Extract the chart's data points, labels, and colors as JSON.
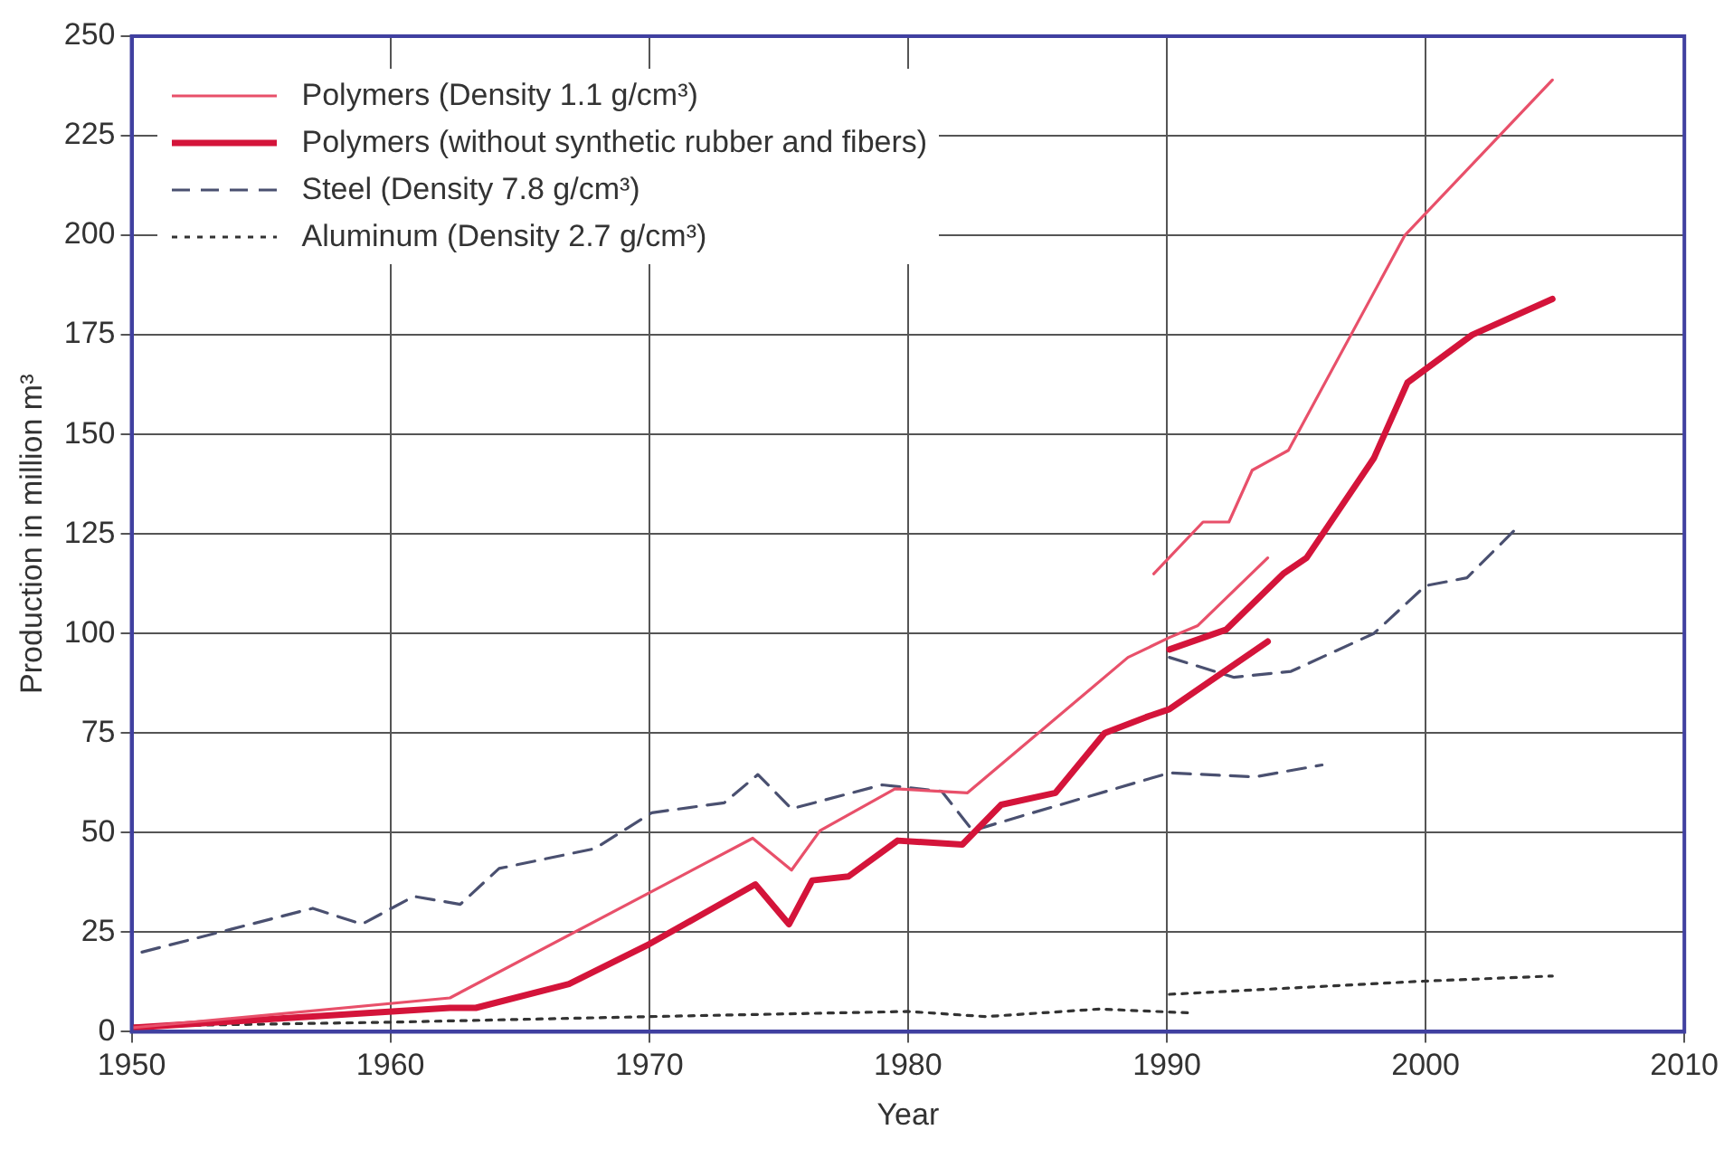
{
  "chart_data": {
    "type": "line",
    "xlabel": "Year",
    "ylabel": "Production in million m³",
    "xlim": [
      1950,
      2010
    ],
    "xticks": [
      1950,
      1960,
      1970,
      1980,
      1990,
      2000,
      2010
    ],
    "ylim": [
      0,
      250
    ],
    "yticks": [
      0,
      25,
      50,
      75,
      100,
      125,
      150,
      175,
      200,
      225,
      250
    ],
    "grid": true,
    "legend": "top left",
    "marker": "none",
    "series": [
      {
        "name": "Polymers (Density 1.1 g/cm³)",
        "color": "#e8506a",
        "line_style": "solid",
        "x": [
          1950,
          1962.3,
          1974,
          1975.5,
          1976.6,
          1979.5,
          1982.3,
          1988.5,
          1990.1,
          1991.2,
          1993.9
        ],
        "values": [
          1,
          8.5,
          48.6,
          40.6,
          50.5,
          61,
          60,
          94,
          99,
          102,
          119
        ]
      },
      {
        "name": "Polymers (without synthetic rubber and fibers)",
        "color": "#d4143a",
        "line_style": "solid",
        "x": [
          1950,
          1962.3,
          1963.3,
          1966.9,
          1970,
          1974.1,
          1975.4,
          1976.3,
          1977.7,
          1979.6,
          1982.1,
          1983.6,
          1985.7,
          1987.6,
          1989.2,
          1990.1,
          1993.9
        ],
        "values": [
          1,
          6,
          6,
          12,
          22,
          37,
          27,
          38,
          39,
          48,
          47,
          57,
          60,
          75,
          79,
          81,
          98
        ]
      },
      {
        "name": "Steel (Density 7.8 g/cm³)",
        "color": "#4a5070",
        "line_style": "dashed",
        "x": [
          1950.4,
          1957,
          1958.9,
          1960.9,
          1962.7,
          1964.2,
          1967.9,
          1970.1,
          1972.9,
          1974.2,
          1975.5,
          1979,
          1981.3,
          1982.5,
          1984.3,
          1990.1,
          1993.4,
          1996
        ],
        "values": [
          20,
          31,
          27,
          34,
          32,
          41,
          46,
          55,
          57.5,
          64.6,
          56,
          62,
          60.4,
          50.5,
          54,
          65,
          64,
          67
        ]
      },
      {
        "name": "Aluminum (Density 2.7 g/cm³)",
        "color": "#333333",
        "line_style": "dotted",
        "x": [
          1950,
          1960,
          1970,
          1980,
          1983,
          1987.4,
          1991
        ],
        "values": [
          1.4,
          2.4,
          3.8,
          5.1,
          3.8,
          5.7,
          4.7
        ]
      },
      {
        "color": "#e8506a",
        "line_style": "solid",
        "x": [
          1989.5,
          1991.4,
          1992.4,
          1993.3,
          1994.7,
          1999.2,
          2004.9
        ],
        "values": [
          115,
          128,
          128,
          141,
          146,
          200,
          239
        ]
      },
      {
        "color": "#d4143a",
        "line_style": "solid",
        "x": [
          1990.1,
          1992.3,
          1994.5,
          1995.4,
          1998,
          1999.3,
          2001.8,
          2004.9
        ],
        "values": [
          96,
          101,
          115,
          119,
          144,
          163,
          175,
          184
        ]
      },
      {
        "color": "#4a5070",
        "line_style": "dashed",
        "x": [
          1990.1,
          1992.6,
          1994.8,
          1998,
          2000,
          2001.6,
          2003.6
        ],
        "values": [
          94,
          89,
          90.5,
          100,
          112,
          114,
          127
        ]
      },
      {
        "color": "#333333",
        "line_style": "dotted",
        "x": [
          1990.1,
          1999.9,
          2004.9
        ],
        "values": [
          9.4,
          12.7,
          14
        ]
      }
    ]
  }
}
